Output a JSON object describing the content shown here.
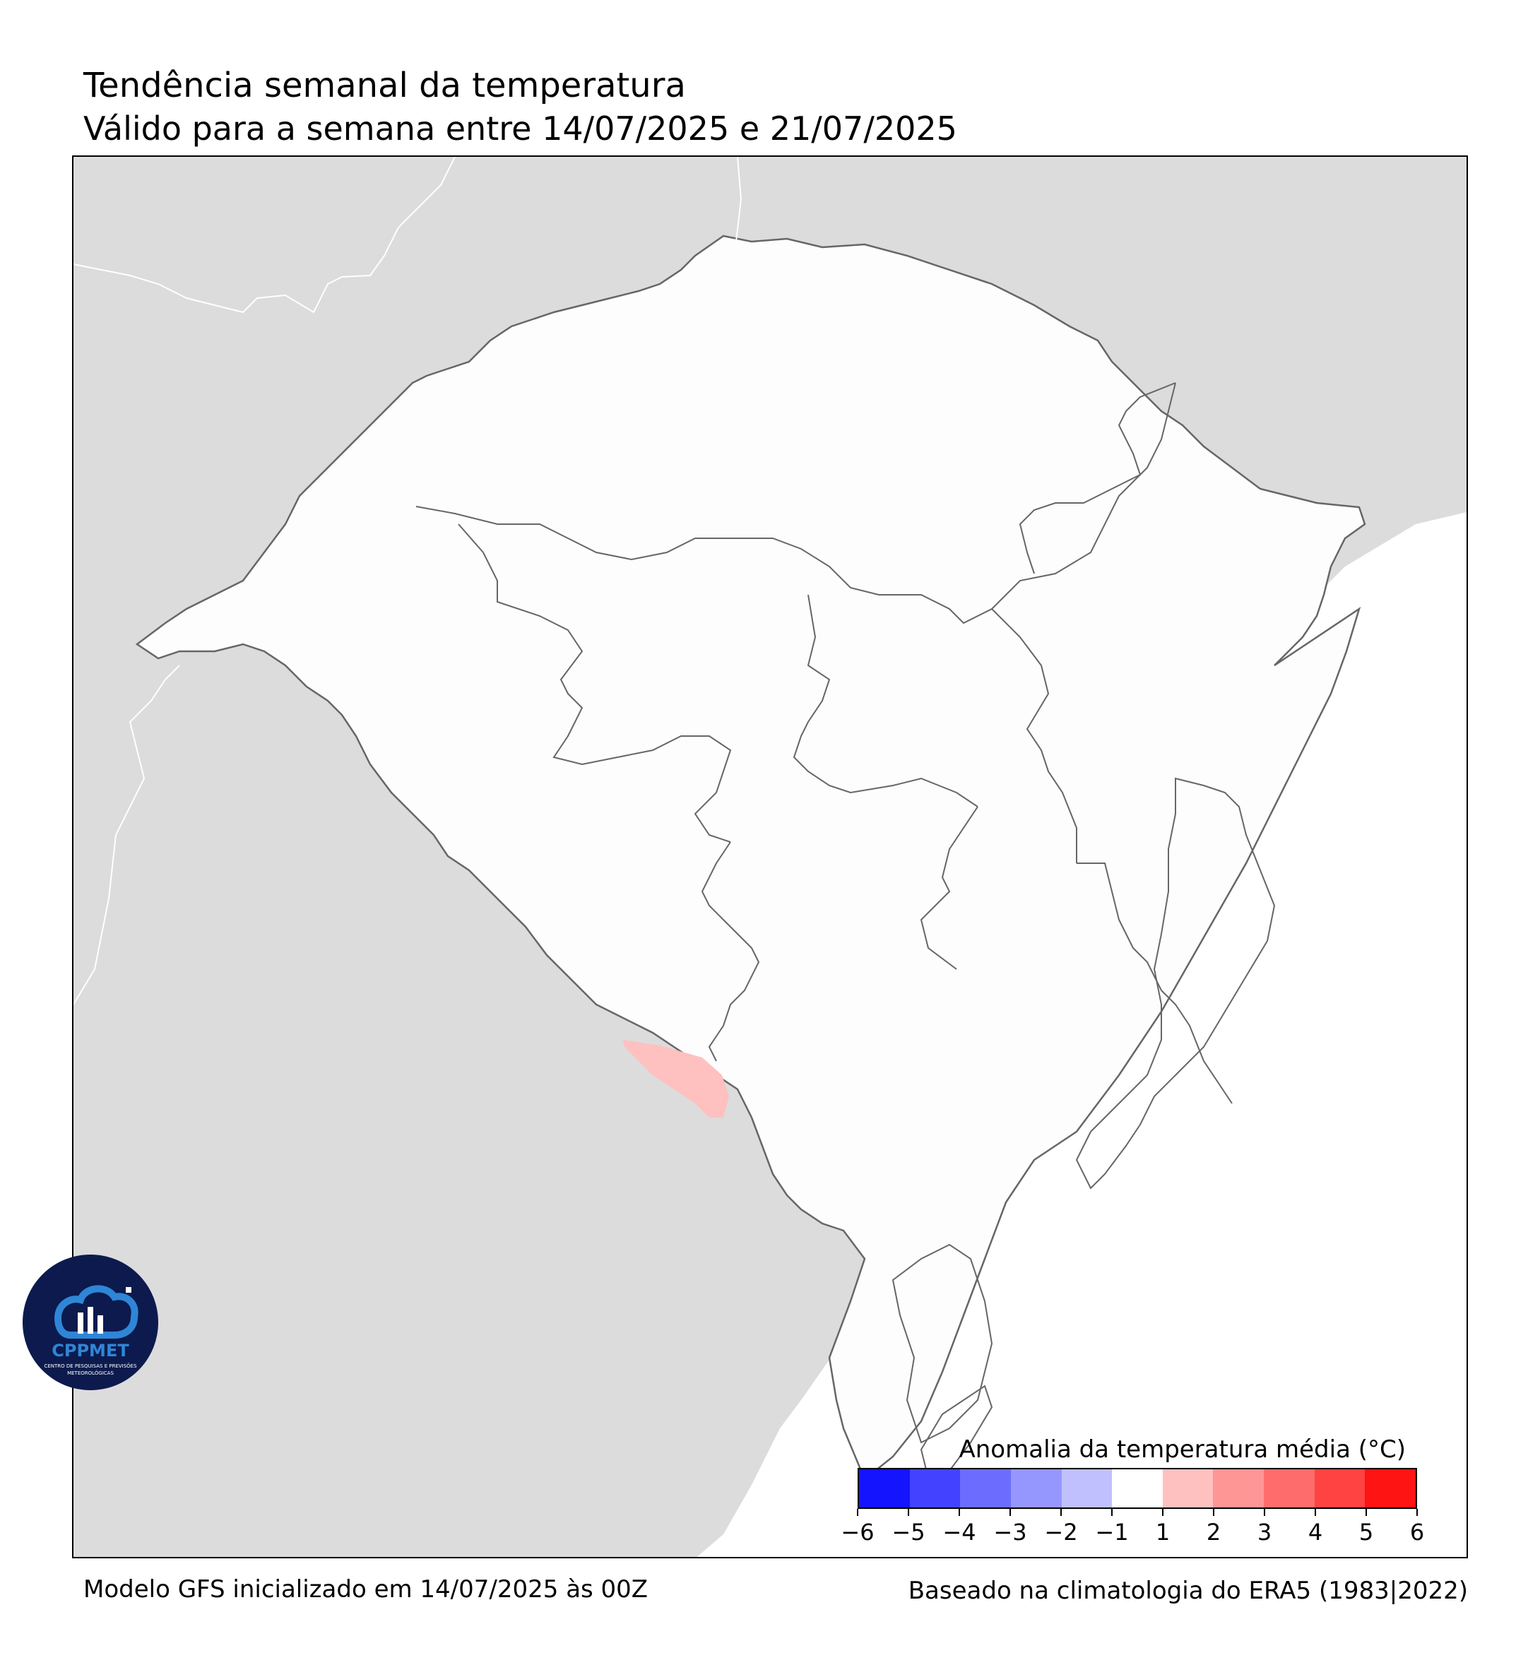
{
  "title": "Tendência semanal da temperatura",
  "subtitle": "Válido para a semana entre 14/07/2025 e 21/07/2025",
  "footer": {
    "left": "Modelo GFS inicializado em 14/07/2025 às 00Z",
    "right": "Baseado na climatologia do ERA5 (1983|2022)"
  },
  "legend": {
    "title": "Anomalia da temperatura média (°C)",
    "tick_labels": [
      "−6",
      "−5",
      "−4",
      "−3",
      "−2",
      "−1",
      "1",
      "2",
      "3",
      "4",
      "5",
      "6"
    ],
    "colors": [
      "#1414ff",
      "#4343ff",
      "#6c6cff",
      "#9696ff",
      "#c0c0ff",
      "#ffffff",
      "#ffc0c0",
      "#ff9696",
      "#ff6c6c",
      "#ff4343",
      "#ff1414"
    ]
  },
  "map_colors": {
    "background": "#dcdcdc",
    "region_fill": "#fdfdfd",
    "ocean": "#ffffff",
    "border_line": "#666666",
    "anomaly_patch": "#ffc0c0"
  },
  "logo": {
    "name": "CPPMET",
    "line1": "CENTRO DE PESQUISAS E PREVISÕES",
    "line2": "METEOROLÓGICAS"
  }
}
